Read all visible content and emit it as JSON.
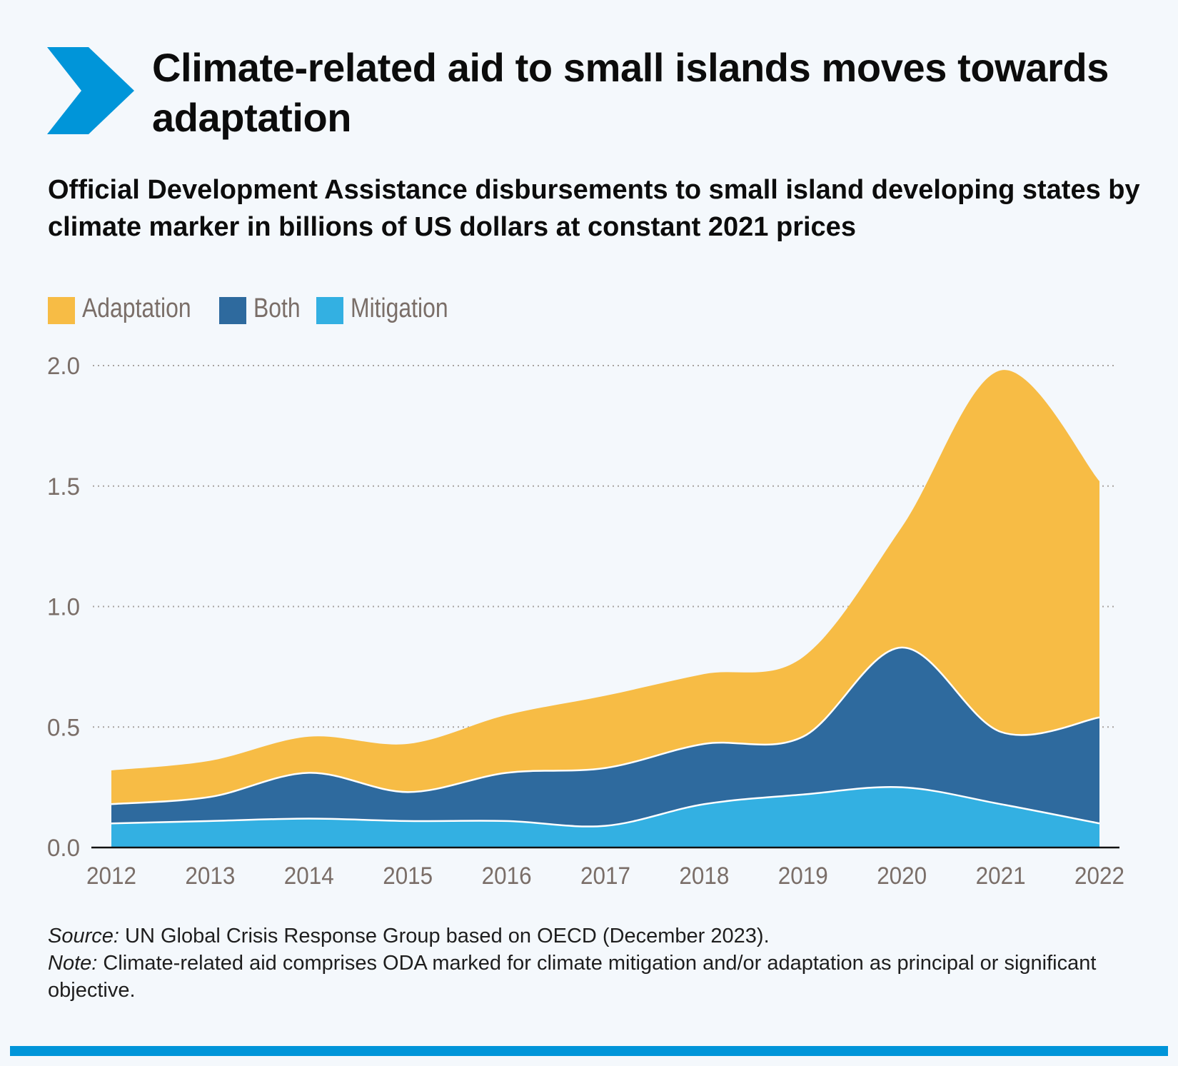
{
  "header": {
    "title": "Climate-related aid to small islands moves towards adaptation",
    "subtitle": "Official Development Assistance disbursements to small island developing states by climate marker in billions of US dollars at constant 2021 prices"
  },
  "colors": {
    "accent": "#0095d9",
    "adaptation": "#f7bc45",
    "both": "#2e6a9e",
    "mitigation": "#33b0e2",
    "grid": "#a8a3a0",
    "axis": "#111111"
  },
  "icons": {
    "header_mark": "chevron-right-icon"
  },
  "chart_data": {
    "type": "area",
    "stacked": true,
    "title": "Climate-related aid to small islands moves towards adaptation",
    "subtitle": "Official Development Assistance disbursements to small island developing states by climate marker in billions of US dollars at constant 2021 prices",
    "xlabel": "",
    "ylabel": "",
    "x": [
      2012,
      2013,
      2014,
      2015,
      2016,
      2017,
      2018,
      2019,
      2020,
      2021,
      2022
    ],
    "x_tick_labels": [
      "2012",
      "2013",
      "2014",
      "2015",
      "2016",
      "2017",
      "2018",
      "2019",
      "2020",
      "2021",
      "2022"
    ],
    "ylim": [
      0,
      2.0
    ],
    "y_ticks": [
      0,
      0.5,
      1.0,
      1.5,
      2.0
    ],
    "y_tick_labels": [
      "0.0",
      "0.5",
      "1.0",
      "1.5",
      "2.0"
    ],
    "grid": "horizontal dotted",
    "legend_position": "top-left",
    "legend": [
      "Adaptation",
      "Both",
      "Mitigation"
    ],
    "series": [
      {
        "name": "Mitigation",
        "color": "#33b0e2",
        "values": [
          0.1,
          0.11,
          0.12,
          0.11,
          0.11,
          0.09,
          0.18,
          0.22,
          0.25,
          0.18,
          0.1
        ]
      },
      {
        "name": "Both",
        "color": "#2e6a9e",
        "values": [
          0.08,
          0.1,
          0.19,
          0.12,
          0.2,
          0.24,
          0.25,
          0.24,
          0.58,
          0.3,
          0.44
        ]
      },
      {
        "name": "Adaptation",
        "color": "#f7bc45",
        "values": [
          0.14,
          0.15,
          0.15,
          0.2,
          0.24,
          0.3,
          0.29,
          0.33,
          0.5,
          1.5,
          0.98
        ]
      }
    ]
  },
  "notes": {
    "source_label": "Source:",
    "source_text": " UN Global Crisis Response Group based on OECD (December 2023).",
    "note_label": "Note:",
    "note_text": " Climate-related aid comprises ODA marked for climate mitigation and/or adaptation as principal or significant objective."
  }
}
